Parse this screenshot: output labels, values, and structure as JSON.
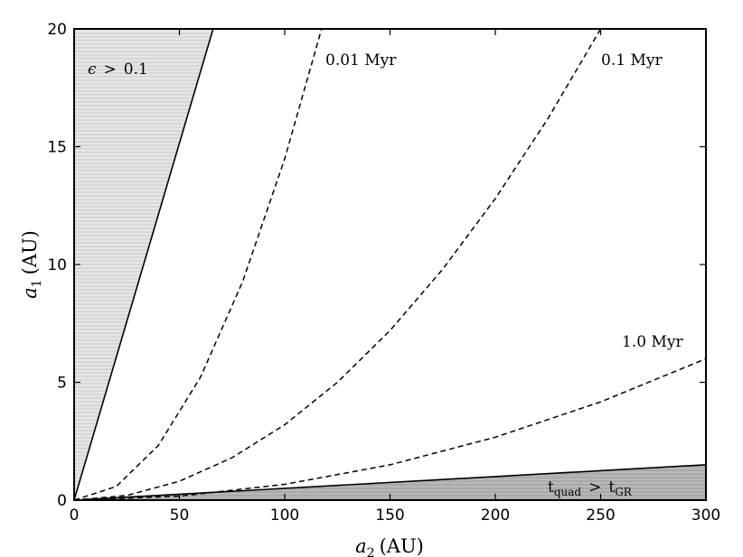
{
  "chart_data": {
    "type": "line",
    "xlabel": {
      "var": "a",
      "sub": "2",
      "unit": "(AU)"
    },
    "ylabel": {
      "var": "a",
      "sub": "1",
      "unit": "(AU)"
    },
    "xlim": [
      0,
      300
    ],
    "ylim": [
      0,
      20
    ],
    "xticks": [
      0,
      50,
      100,
      150,
      200,
      250,
      300
    ],
    "yticks": [
      0,
      5,
      10,
      15,
      20
    ],
    "grid": false,
    "legend": "none",
    "series": [
      {
        "name": "0.01 Myr",
        "style": "dashed",
        "color": "#000000",
        "x": [
          0,
          20,
          40,
          60,
          80,
          100,
          117.5
        ],
        "y": [
          0,
          0.58,
          2.32,
          5.22,
          9.27,
          14.49,
          20.0
        ]
      },
      {
        "name": "0.1 Myr",
        "style": "dashed",
        "color": "#000000",
        "x": [
          0,
          25,
          50,
          75,
          100,
          125,
          150,
          175,
          200,
          225,
          250
        ],
        "y": [
          0,
          0.2,
          0.8,
          1.8,
          3.2,
          5.0,
          7.2,
          9.8,
          12.8,
          16.2,
          20.0
        ]
      },
      {
        "name": "1.0 Myr",
        "style": "dashed",
        "color": "#000000",
        "x": [
          0,
          50,
          100,
          150,
          200,
          250,
          300
        ],
        "y": [
          0,
          0.17,
          0.67,
          1.5,
          2.67,
          4.17,
          6.0
        ]
      }
    ],
    "regions": [
      {
        "label": {
          "sym": "ϵ",
          "op": ">",
          "val": "0.1"
        },
        "boundary": {
          "x": [
            0,
            66
          ],
          "y": [
            0,
            20
          ]
        },
        "fill": "#e2e2e2",
        "hatch": "horizontal"
      },
      {
        "label": {
          "lhs": "t",
          "lhs_sub": "quad",
          "op": ">",
          "rhs": "t",
          "rhs_sub": "GR"
        },
        "boundary": {
          "x": [
            0,
            300
          ],
          "y": [
            0,
            1.5
          ]
        },
        "fill": "#b4b4b4",
        "hatch": "horizontal"
      }
    ],
    "annotations": [
      {
        "text": "0.01 Myr",
        "x": 118,
        "y": 18.8
      },
      {
        "text": "0.1 Myr",
        "x": 251,
        "y": 18.8
      },
      {
        "text": "1.0 Myr",
        "x": 260,
        "y": 6.5
      }
    ]
  }
}
